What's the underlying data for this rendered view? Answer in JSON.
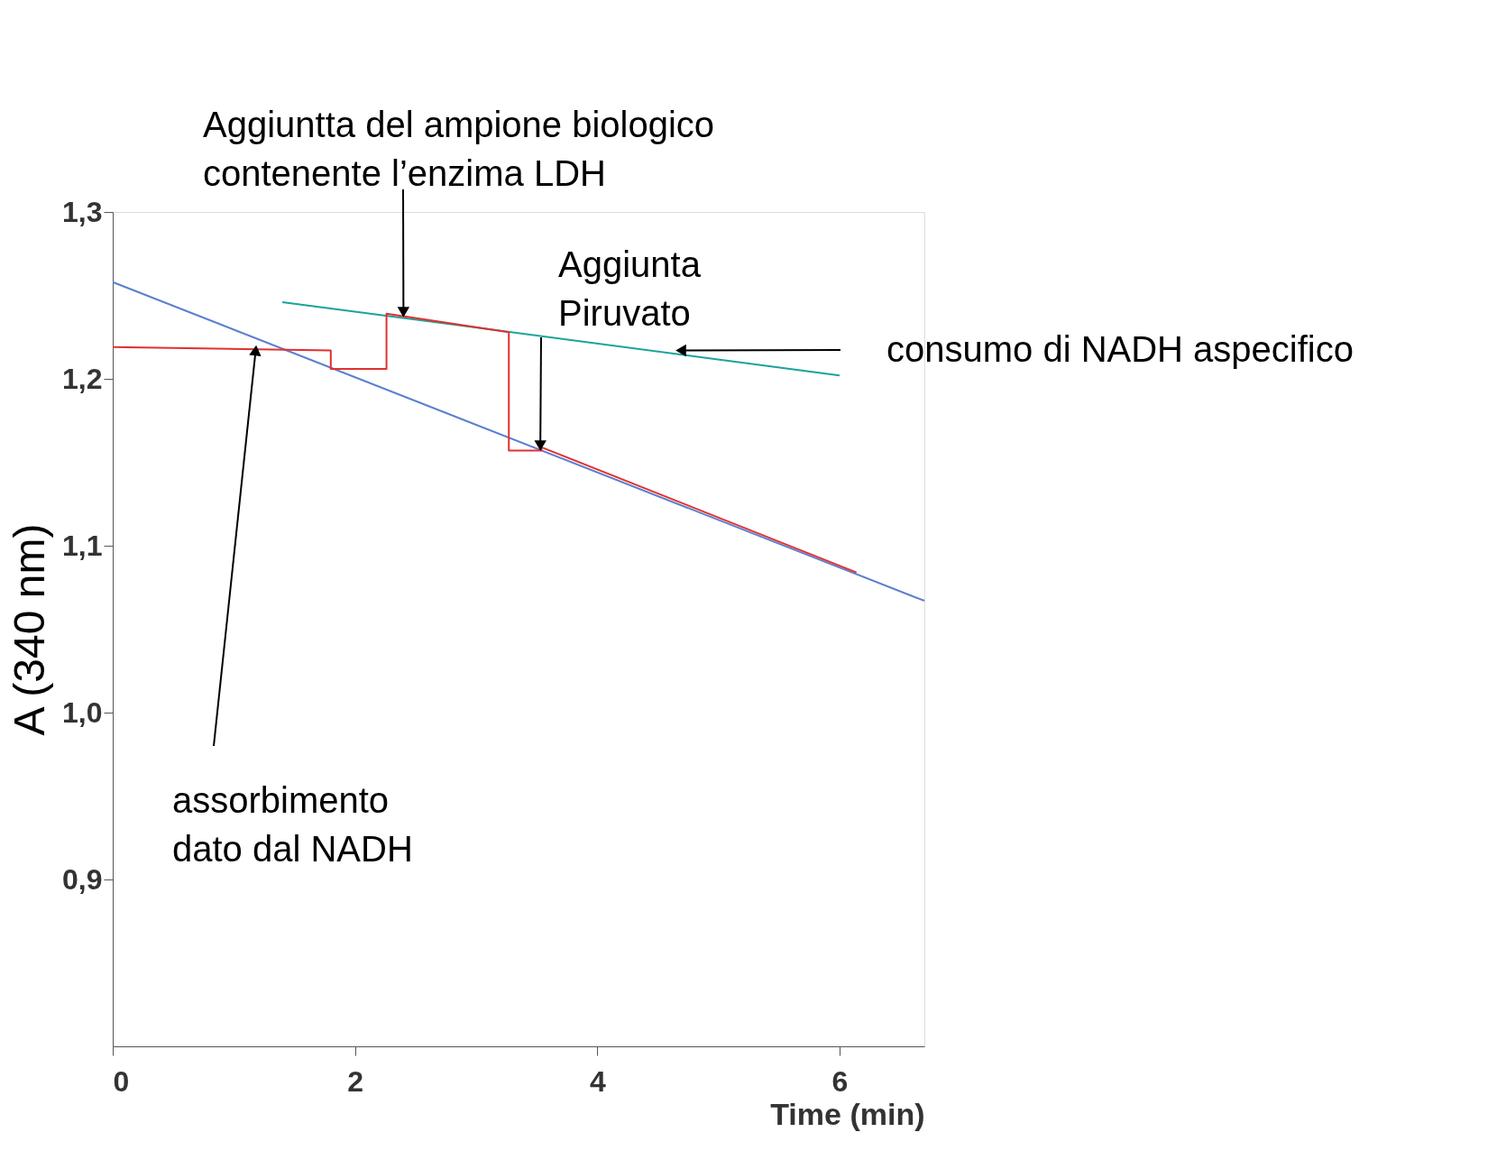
{
  "chart_data": {
    "type": "line",
    "xlabel": "Time (min)",
    "ylabel": "A (340 nm)",
    "xlim": [
      0,
      6.7
    ],
    "ylim": [
      0.8,
      1.3
    ],
    "xticks": [
      0,
      2,
      4,
      6
    ],
    "yticks": [
      {
        "value": 0.9,
        "label": "0,9"
      },
      {
        "value": 1.0,
        "label": "1,0"
      },
      {
        "value": 1.1,
        "label": "1,1"
      },
      {
        "value": 1.2,
        "label": "1,2"
      },
      {
        "value": 1.3,
        "label": "1,3"
      }
    ],
    "grid": false,
    "marker": "none",
    "line_style": "solid",
    "series": [
      {
        "color": "#5b7fcf",
        "x": [
          0,
          6.7
        ],
        "values": [
          1.258,
          1.067
        ]
      },
      {
        "color": "#1aa39a",
        "x": [
          1.4,
          6.0
        ],
        "values": [
          1.246,
          1.202
        ]
      },
      {
        "color": "#e03030",
        "x": [
          0,
          1.8,
          1.8,
          2.26,
          2.26,
          3.27,
          3.27,
          3.54,
          3.54,
          6.14
        ],
        "values": [
          1.219,
          1.217,
          1.206,
          1.206,
          1.239,
          1.228,
          1.157,
          1.157,
          1.159,
          1.084
        ]
      }
    ],
    "annotations": [
      {
        "text": "Aggiuntta del ampione biologico\ncontenente l’enzima LDH",
        "x": 2.4,
        "y": 1.24
      },
      {
        "text": "Aggiunta\nPiruvato",
        "x": 3.53,
        "y": 1.16
      },
      {
        "text": "consumo di NADH aspecifico",
        "x": 4.69,
        "y": 1.217
      },
      {
        "text": "assorbimento\ndato dal NADH",
        "x": 1.18,
        "y": 1.217
      }
    ]
  }
}
